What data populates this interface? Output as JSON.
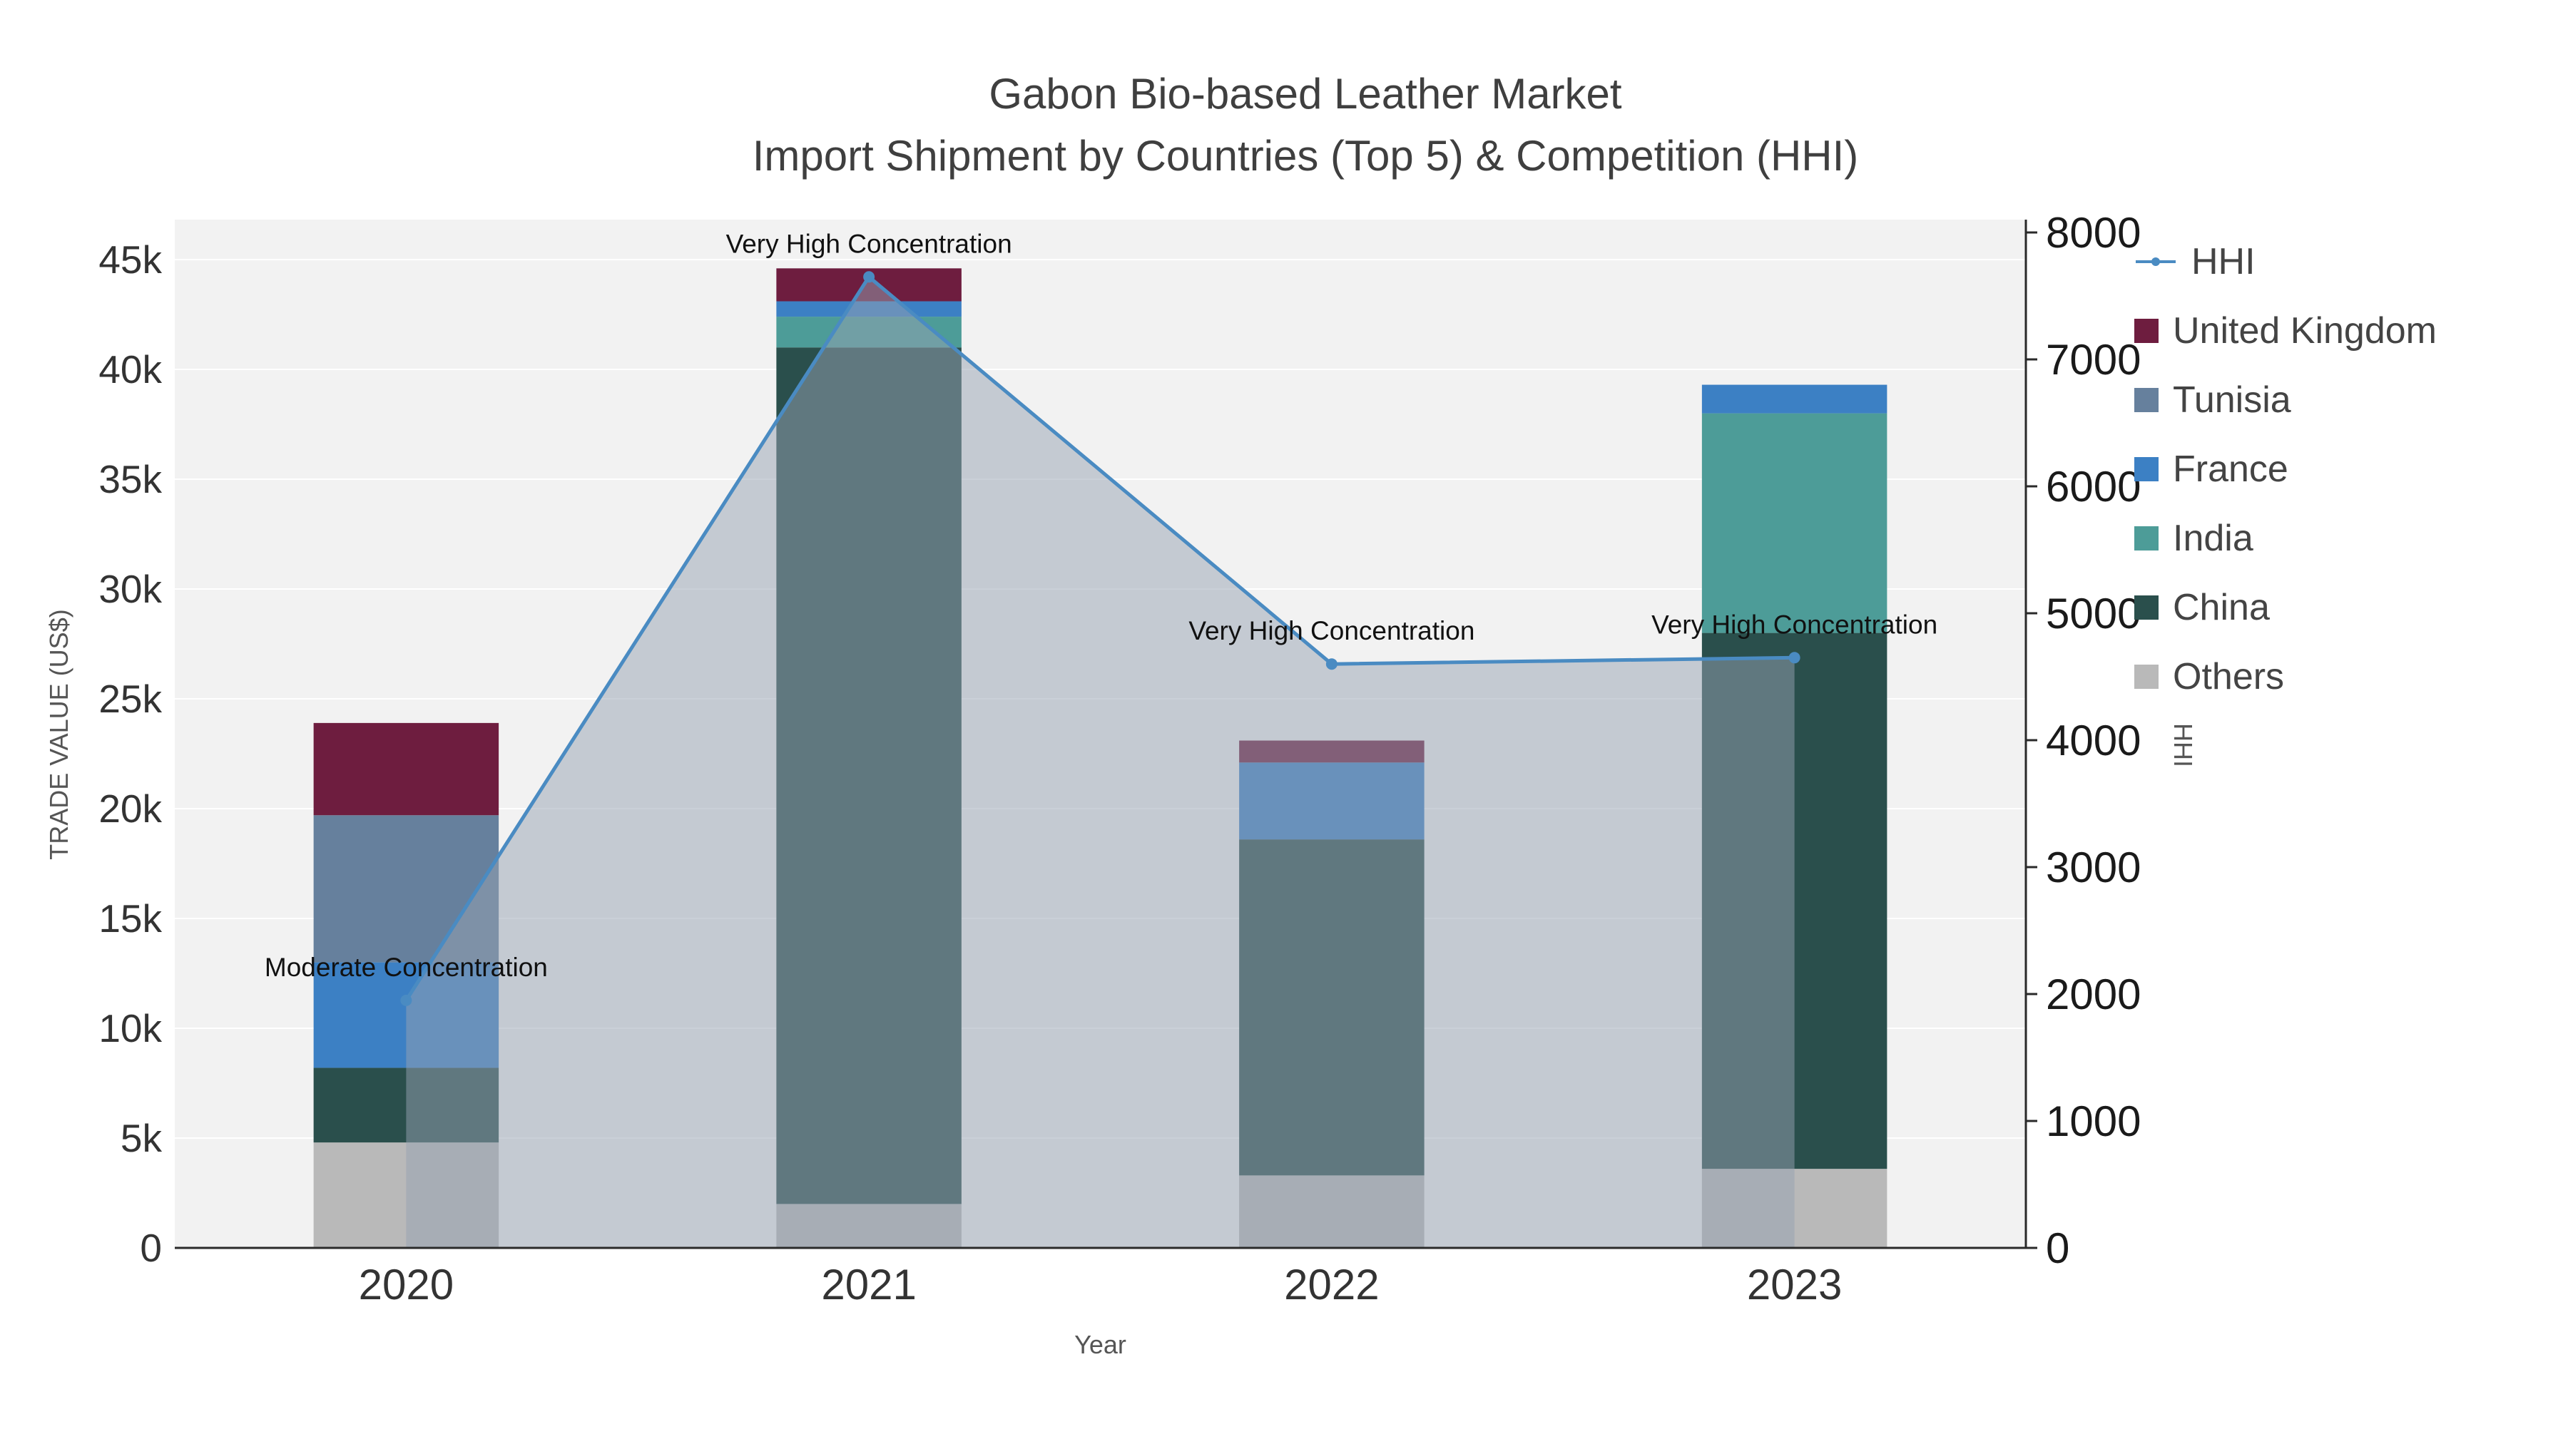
{
  "title": {
    "line1": "Gabon Bio-based Leather Market",
    "line2": "Import Shipment by Countries (Top 5) & Competition (HHI)"
  },
  "chart_data": {
    "type": "combo_stacked_bar_line",
    "categories": [
      "2020",
      "2021",
      "2022",
      "2023"
    ],
    "xlabel": "Year",
    "ylabel_left": "TRADE VALUE (US$)",
    "ylabel_right": "HHI",
    "yaxis_left": {
      "ticks": [
        "0",
        "5k",
        "10k",
        "15k",
        "20k",
        "25k",
        "30k",
        "35k",
        "40k",
        "45k"
      ],
      "tick_values": [
        0,
        5000,
        10000,
        15000,
        20000,
        25000,
        30000,
        35000,
        40000,
        45000
      ],
      "max": 45000
    },
    "yaxis_right": {
      "ticks": [
        "0",
        "1000",
        "2000",
        "3000",
        "4000",
        "5000",
        "6000",
        "7000",
        "8000"
      ],
      "tick_values": [
        0,
        1000,
        2000,
        3000,
        4000,
        5000,
        6000,
        7000,
        8000
      ],
      "max": 8000
    },
    "series": [
      {
        "name": "Others",
        "type": "bar",
        "color": "#b9b9b9",
        "values": [
          4800,
          2000,
          3300,
          3600
        ]
      },
      {
        "name": "China",
        "type": "bar",
        "color": "#2a4f4c",
        "values": [
          3400,
          39000,
          15300,
          24400
        ]
      },
      {
        "name": "India",
        "type": "bar",
        "color": "#4d9c98",
        "values": [
          0,
          1400,
          0,
          10000
        ]
      },
      {
        "name": "France",
        "type": "bar",
        "color": "#3c80c4",
        "values": [
          4800,
          700,
          3500,
          1300
        ]
      },
      {
        "name": "Tunisia",
        "type": "bar",
        "color": "#66809d",
        "values": [
          6700,
          0,
          0,
          0
        ]
      },
      {
        "name": "United Kingdom",
        "type": "bar",
        "color": "#6e1d3f",
        "values": [
          4200,
          1500,
          1000,
          0
        ]
      }
    ],
    "line": {
      "name": "HHI",
      "color": "#4a8bc2",
      "fill_color": "rgba(150,162,178,0.5)",
      "values": [
        1950,
        7650,
        4600,
        4650
      ]
    },
    "annotations": [
      {
        "text": "Moderate Concentration",
        "category": "2020",
        "y": 1950
      },
      {
        "text": "Very High Concentration",
        "category": "2021",
        "y": 7650
      },
      {
        "text": "Very High Concentration",
        "category": "2022",
        "y": 4600
      },
      {
        "text": "Very High Concentration",
        "category": "2023",
        "y": 4650
      }
    ]
  },
  "legend": {
    "items": [
      {
        "label": "HHI",
        "type": "line",
        "color": "#4a8bc2"
      },
      {
        "label": "United Kingdom",
        "type": "swatch",
        "color": "#6e1d3f"
      },
      {
        "label": "Tunisia",
        "type": "swatch",
        "color": "#66809d"
      },
      {
        "label": "France",
        "type": "swatch",
        "color": "#3c80c4"
      },
      {
        "label": "India",
        "type": "swatch",
        "color": "#4d9c98"
      },
      {
        "label": "China",
        "type": "swatch",
        "color": "#2a4f4c"
      },
      {
        "label": "Others",
        "type": "swatch",
        "color": "#b9b9b9"
      }
    ]
  },
  "colors": {
    "plot_background": "#f2f2f2",
    "gridline": "#ffffff",
    "axis_line": "#2a2a2a",
    "title_text": "#3f3f3f"
  }
}
